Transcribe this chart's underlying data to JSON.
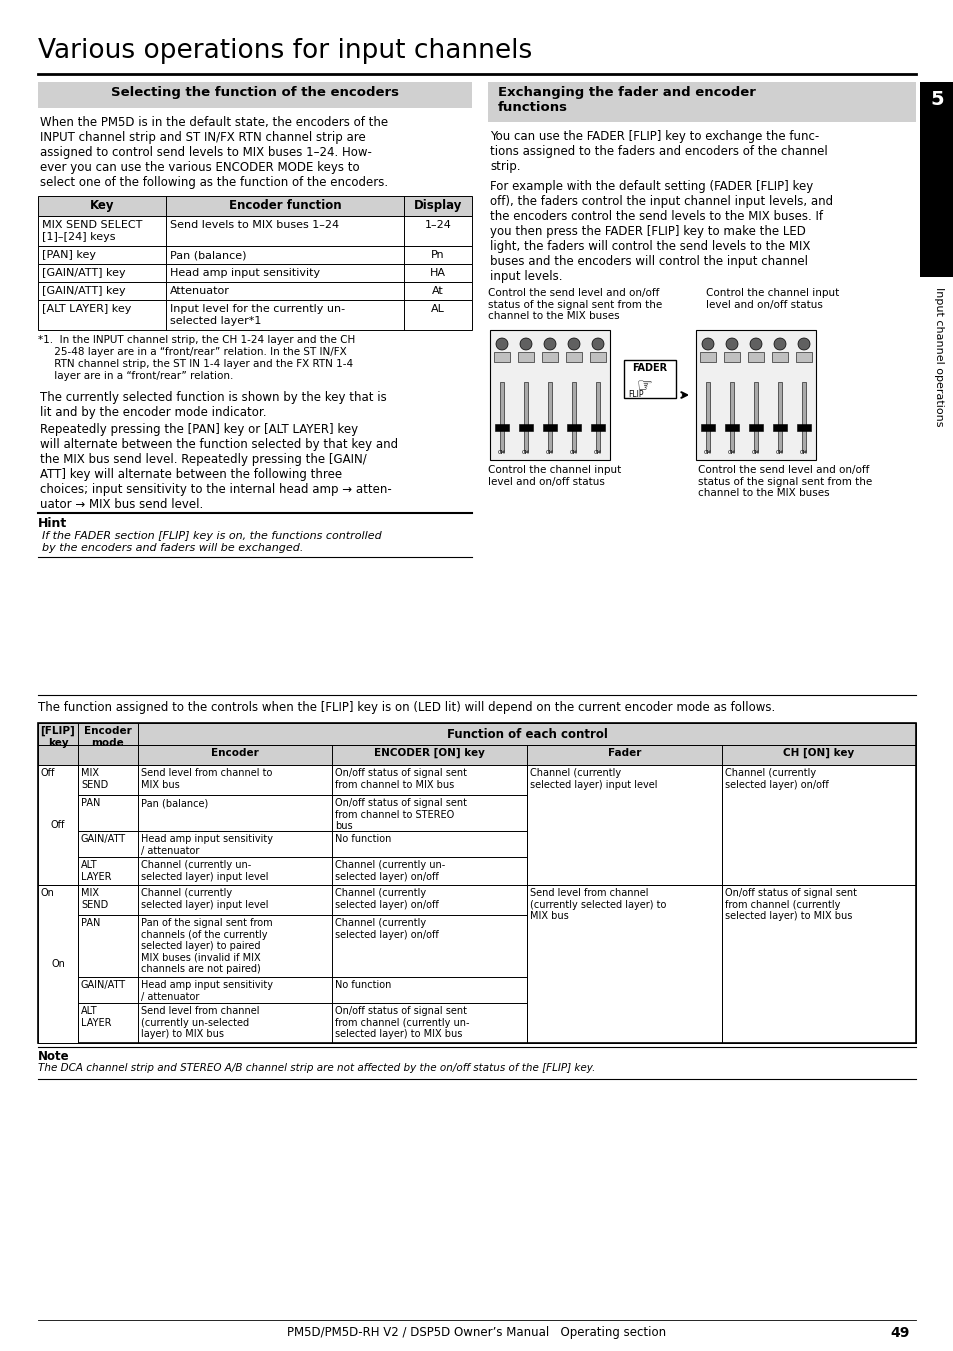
{
  "title": "Various operations for input channels",
  "left_section_title": "Selecting the function of the encoders",
  "right_section_title": "Exchanging the fader and encoder\nfunctions",
  "left_body_text": "When the PM5D is in the default state, the encoders of the\nINPUT channel strip and ST IN/FX RTN channel strip are\nassigned to control send levels to MIX buses 1–24. How-\never you can use the various ENCODER MODE keys to\nselect one of the following as the function of the encoders.",
  "table1_headers": [
    "Key",
    "Encoder function",
    "Display"
  ],
  "table1_rows": [
    [
      "MIX SEND SELECT\n[1]–[24] keys",
      "Send levels to MIX buses 1–24",
      "1–24"
    ],
    [
      "[PAN] key",
      "Pan (balance)",
      "Pn"
    ],
    [
      "[GAIN/ATT] key",
      "Head amp input sensitivity",
      "HA"
    ],
    [
      "[GAIN/ATT] key",
      "Attenuator",
      "At"
    ],
    [
      "[ALT LAYER] key",
      "Input level for the currently un-\nselected layer*1",
      "AL"
    ]
  ],
  "footnote1_line1": "*1.  In the INPUT channel strip, the CH 1-24 layer and the CH",
  "footnote1_line2": "     25-48 layer are in a “front/rear” relation. In the ST IN/FX",
  "footnote1_line3": "     RTN channel strip, the ST IN 1-4 layer and the FX RTN 1-4",
  "footnote1_line4": "     layer are in a “front/rear” relation.",
  "left_extra_text1": "The currently selected function is shown by the key that is\nlit and by the encoder mode indicator.",
  "left_extra_text2": "Repeatedly pressing the [PAN] key or [ALT LAYER] key\nwill alternate between the function selected by that key and\nthe MIX bus send level. Repeatedly pressing the [GAIN/\nATT] key will alternate between the following three\nchoices; input sensitivity to the internal head amp → atten-\nuator → MIX bus send level.",
  "hint_title": "Hint",
  "hint_text": "If the FADER section [FLIP] key is on, the functions controlled\nby the encoders and faders will be exchanged.",
  "right_body_text1": "You can use the FADER [FLIP] key to exchange the func-\ntions assigned to the faders and encoders of the channel\nstrip.",
  "right_body_text2": "For example with the default setting (FADER [FLIP] key\noff), the faders control the input channel input levels, and\nthe encoders control the send levels to the MIX buses. If\nyou then press the FADER [FLIP] key to make the LED\nlight, the faders will control the send levels to the MIX\nbuses and the encoders will control the input channel\ninput levels.",
  "img_caption_left_top": "Control the send level and on/off\nstatus of the signal sent from the\nchannel to the MIX buses",
  "img_caption_right_top": "Control the channel input\nlevel and on/off status",
  "img_caption_left_bot": "Control the channel input\nlevel and on/off status",
  "img_caption_right_bot": "Control the send level and on/off\nstatus of the signal sent from the\nchannel to the MIX buses",
  "flip_section_text": "The function assigned to the controls when the [FLIP] key is on (LED lit) will depend on the current encoder mode as follows.",
  "note_text": "The DCA channel strip and STEREO A/B channel strip are not affected by the on/off status of the [FLIP] key.",
  "footer_text": "PM5D/PM5D-RH V2 / DSP5D Owner’s Manual   Operating section",
  "page_number": "49",
  "chapter_number": "5",
  "chapter_label": "Input channel operations",
  "bg_color": "#ffffff",
  "section_bg": "#d0d0d0",
  "table_header_bg": "#d0d0d0",
  "border_color": "#000000"
}
